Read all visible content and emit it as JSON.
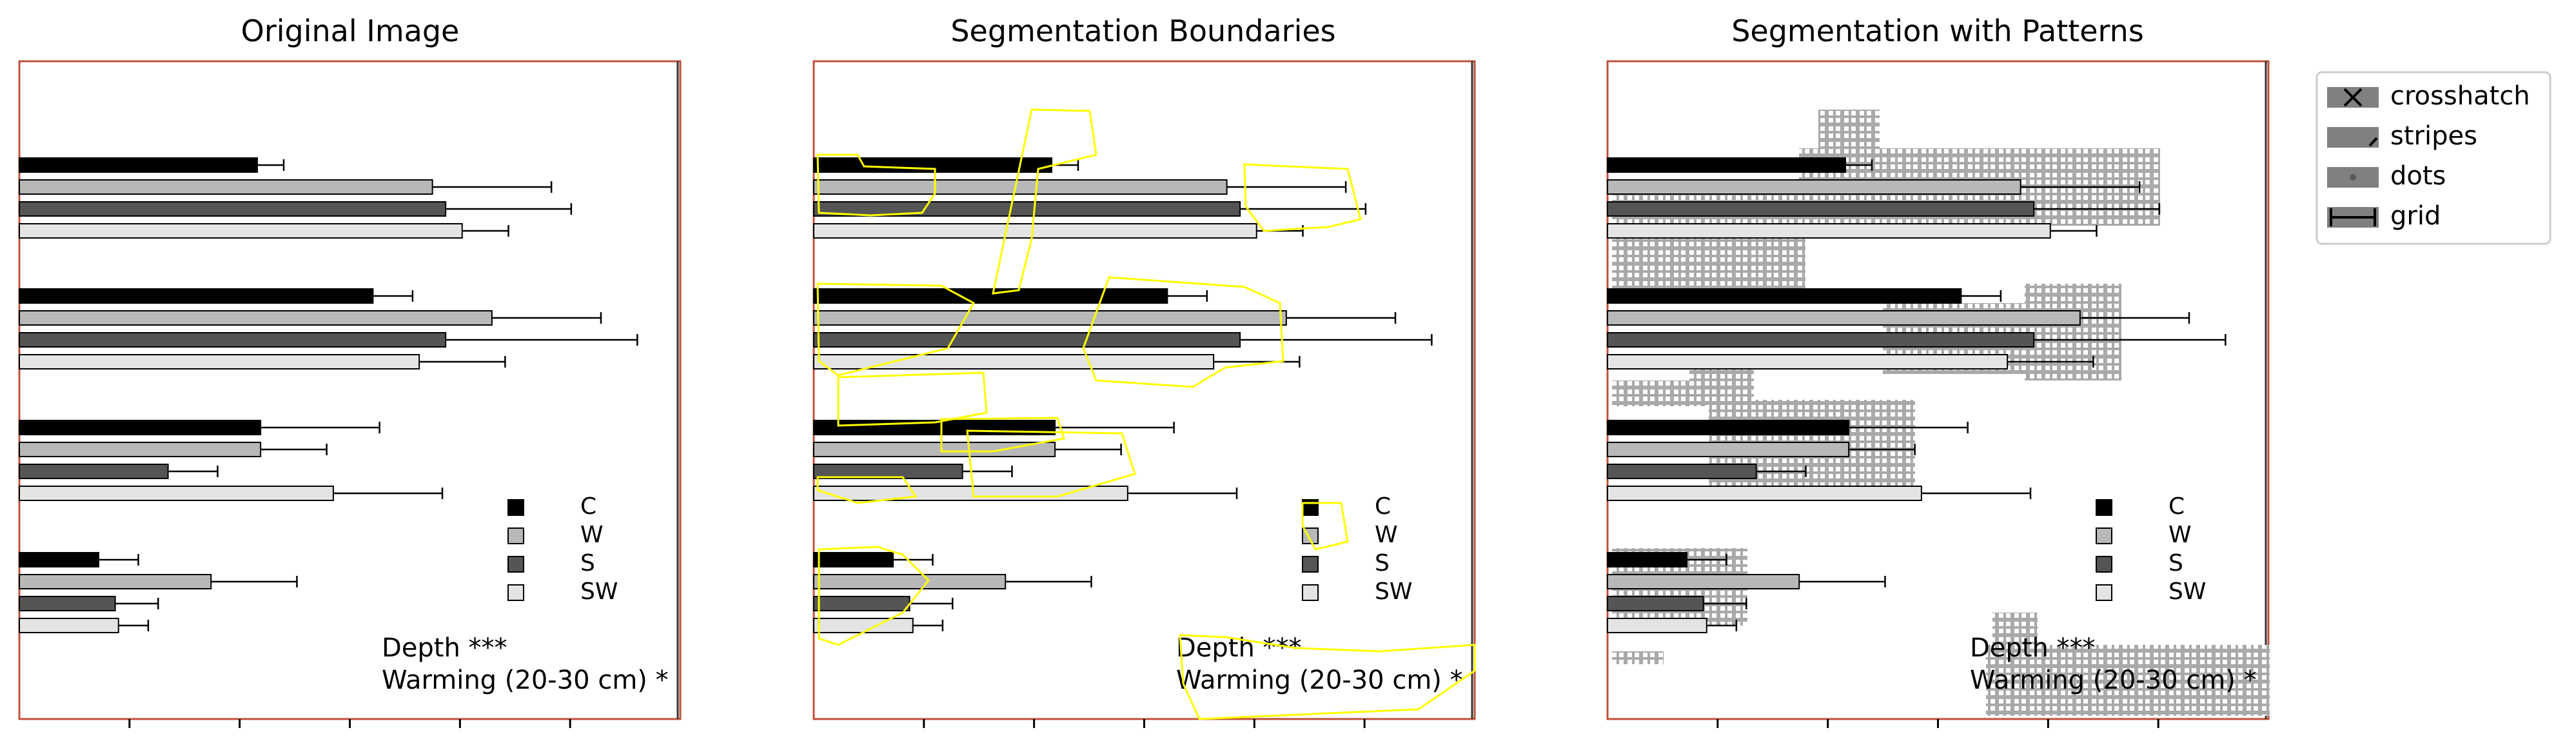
{
  "panel_titles": [
    "Original Image",
    "Segmentation Boundaries",
    "Segmentation with Patterns"
  ],
  "chart_data": {
    "type": "bar",
    "orientation": "horizontal",
    "groups": 4,
    "series": [
      {
        "name": "C",
        "color": "#000000",
        "values": [
          0.36,
          0.535,
          0.365,
          0.12
        ],
        "errors": [
          0.04,
          0.06,
          0.18,
          0.06
        ]
      },
      {
        "name": "W",
        "color": "#b8b8b8",
        "values": [
          0.625,
          0.715,
          0.365,
          0.29
        ],
        "errors": [
          0.18,
          0.165,
          0.1,
          0.13
        ]
      },
      {
        "name": "S",
        "color": "#555555",
        "values": [
          0.645,
          0.645,
          0.225,
          0.145
        ],
        "errors": [
          0.19,
          0.29,
          0.075,
          0.065
        ]
      },
      {
        "name": "SW",
        "color": "#e4e4e4",
        "values": [
          0.67,
          0.605,
          0.475,
          0.15
        ],
        "errors": [
          0.07,
          0.13,
          0.165,
          0.045
        ]
      }
    ],
    "xlim": [
      0,
      1
    ],
    "annotation_lines": [
      "Depth ***",
      "Warming (20-30 cm) *"
    ],
    "grid": false
  },
  "legend": {
    "items": [
      {
        "label": "crosshatch"
      },
      {
        "label": "stripes"
      },
      {
        "label": "dots"
      },
      {
        "label": "grid"
      }
    ]
  },
  "colors": {
    "frame": "#c0503a",
    "boundary": "#ffff00",
    "pattern": "#a9a9a9",
    "legend_patch": "#808080"
  }
}
